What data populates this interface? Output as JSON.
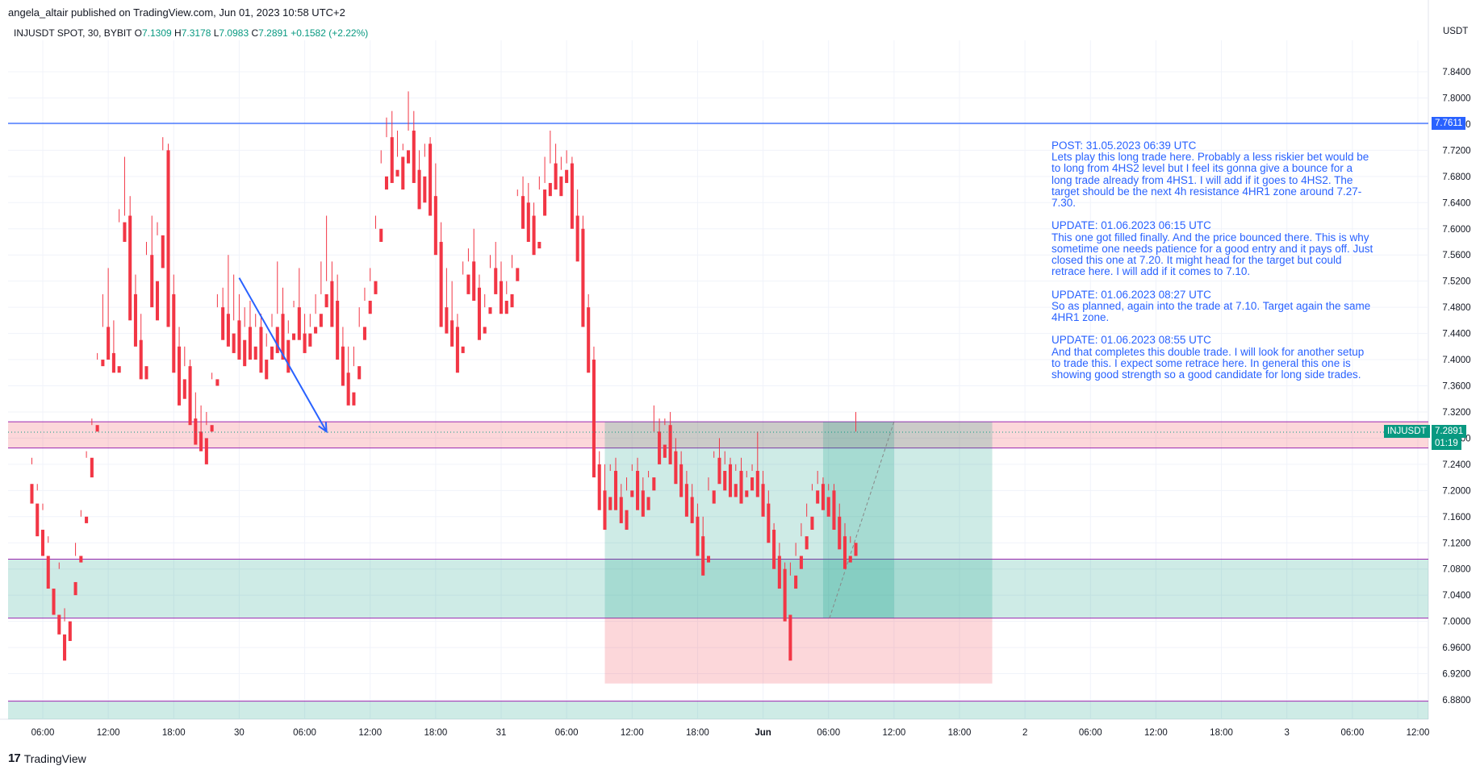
{
  "header": {
    "publisher_text": "angela_altair published on TradingView.com, Jun 01, 2023 10:58 UTC+2"
  },
  "symbol_bar": {
    "symbol": "INJUSDT SPOT, 30, BYBIT",
    "o_label": "O",
    "o_value": "7.1309",
    "h_label": "H",
    "h_value": "7.3178",
    "l_label": "L",
    "l_value": "7.0983",
    "c_label": "C",
    "c_value": "7.2891",
    "change": "+0.1582 (+2.22%)"
  },
  "currency_label": "USDT",
  "price_tags": {
    "resistance_value": "7.7611",
    "ticker_name": "INJUSDT",
    "last_price": "7.2891",
    "countdown": "01:19"
  },
  "colors": {
    "up": "#089981",
    "down": "#f23645",
    "resistance_line": "#2962ff",
    "zone_lines": "#9c27b0",
    "note_text": "#2962ff"
  },
  "notes": [
    "POST: 31.05.2023 06:39 UTC\nLets play this long trade here. Probably a less riskier bet would be to long from 4HS2 level but I feel its gonna give a bounce for a long trade already from 4HS1. I will add if it goes to 4HS2. The target should be the next 4h resistance 4HR1 zone around 7.27-7.30.",
    "UPDATE: 01.06.2023 06:15 UTC\nThis one got filled finally. And the price bounced there. This is why sometime one needs patience for a good entry and it pays off. Just closed this one at 7.20. It might head for the target but could retrace here. I will add if it comes to 7.10.",
    "UPDATE: 01.06.2023 08:27 UTC\nSo as planned, again into the trade at 7.10. Target again the same 4HR1 zone.",
    "UPDATE: 01.06.2023 08:55 UTC\nAnd that completes this double trade. I will look for another setup to trade this. I expect some retrace here. In general this one is showing good strength so a good candidate for long side trades."
  ],
  "footer": {
    "brand": "TradingView",
    "mark": "17"
  },
  "chart_data": {
    "type": "candlestick",
    "symbol": "INJUSDT",
    "timeframe": "30",
    "y_axis_labels": [
      "7.8400",
      "7.8000",
      "7.7600",
      "7.7200",
      "7.6800",
      "7.6400",
      "7.6000",
      "7.5600",
      "7.5200",
      "7.4800",
      "7.4400",
      "7.4000",
      "7.3600",
      "7.3200",
      "7.2800",
      "7.2400",
      "7.2000",
      "7.1600",
      "7.1200",
      "7.0800",
      "7.0400",
      "7.0000",
      "6.9600",
      "6.9200",
      "6.8800"
    ],
    "ylim": [
      6.86,
      7.88
    ],
    "x_axis_labels": [
      "06:00",
      "12:00",
      "18:00",
      "30",
      "06:00",
      "12:00",
      "18:00",
      "31",
      "06:00",
      "12:00",
      "18:00",
      "Jun",
      "06:00",
      "12:00",
      "18:00",
      "2",
      "06:00",
      "12:00",
      "18:00",
      "3",
      "06:00",
      "12:00"
    ],
    "x_axis_bar_index": [
      2,
      14,
      26,
      38,
      50,
      62,
      74,
      86,
      98,
      110,
      122,
      134,
      146,
      158,
      170,
      182,
      194,
      206,
      218,
      230,
      242,
      254
    ],
    "levels": {
      "resistance": 7.7611,
      "upper_zone": [
        7.265,
        7.305
      ],
      "support_zone": [
        7.005,
        7.095
      ],
      "bottom_line": 6.878,
      "last_price": 7.2891
    },
    "long_position": {
      "start_bar": 105,
      "end_bar": 176,
      "entry": 7.005,
      "target": 7.305,
      "stop": 6.905
    },
    "long_position_2": {
      "start_bar": 145,
      "end_bar": 158,
      "entry": 7.005,
      "target": 7.305
    },
    "arrow": {
      "from": [
        38,
        7.525
      ],
      "to": [
        54,
        7.29
      ]
    },
    "candles": [
      [
        7.21,
        7.25,
        7.24,
        7.18
      ],
      [
        7.18,
        7.21,
        7.2,
        7.13
      ],
      [
        7.14,
        7.18,
        7.17,
        7.1
      ],
      [
        7.1,
        7.13,
        7.12,
        7.05
      ],
      [
        7.05,
        7.08,
        7.08,
        7.01
      ],
      [
        7.01,
        7.09,
        7.08,
        6.98
      ],
      [
        6.98,
        7.02,
        7.0,
        6.94
      ],
      [
        7.0,
        7.06,
        7.06,
        6.97
      ],
      [
        7.06,
        7.12,
        7.1,
        7.04
      ],
      [
        7.1,
        7.17,
        7.16,
        7.09
      ],
      [
        7.16,
        7.26,
        7.25,
        7.15
      ],
      [
        7.25,
        7.31,
        7.3,
        7.22
      ],
      [
        7.3,
        7.41,
        7.4,
        7.29
      ],
      [
        7.4,
        7.5,
        7.45,
        7.39
      ],
      [
        7.45,
        7.54,
        7.41,
        7.4
      ],
      [
        7.41,
        7.46,
        7.39,
        7.38
      ],
      [
        7.39,
        7.63,
        7.61,
        7.38
      ],
      [
        7.61,
        7.71,
        7.62,
        7.58
      ],
      [
        7.62,
        7.65,
        7.5,
        7.46
      ],
      [
        7.5,
        7.53,
        7.43,
        7.42
      ],
      [
        7.43,
        7.47,
        7.39,
        7.37
      ],
      [
        7.39,
        7.58,
        7.56,
        7.37
      ],
      [
        7.56,
        7.62,
        7.52,
        7.48
      ],
      [
        7.52,
        7.61,
        7.59,
        7.46
      ],
      [
        7.59,
        7.74,
        7.72,
        7.54
      ],
      [
        7.72,
        7.73,
        7.5,
        7.45
      ],
      [
        7.5,
        7.53,
        7.42,
        7.38
      ],
      [
        7.42,
        7.45,
        7.37,
        7.33
      ],
      [
        7.37,
        7.42,
        7.39,
        7.34
      ],
      [
        7.39,
        7.4,
        7.31,
        7.3
      ],
      [
        7.31,
        7.35,
        7.29,
        7.27
      ],
      [
        7.29,
        7.33,
        7.28,
        7.26
      ],
      [
        7.28,
        7.32,
        7.3,
        7.24
      ],
      [
        7.3,
        7.38,
        7.37,
        7.29
      ],
      [
        7.37,
        7.5,
        7.48,
        7.36
      ],
      [
        7.48,
        7.51,
        7.47,
        7.43
      ],
      [
        7.47,
        7.56,
        7.44,
        7.42
      ],
      [
        7.44,
        7.53,
        7.46,
        7.41
      ],
      [
        7.46,
        7.5,
        7.43,
        7.4
      ],
      [
        7.43,
        7.48,
        7.45,
        7.39
      ],
      [
        7.45,
        7.49,
        7.42,
        7.4
      ],
      [
        7.42,
        7.47,
        7.45,
        7.4
      ],
      [
        7.45,
        7.47,
        7.4,
        7.38
      ],
      [
        7.4,
        7.44,
        7.42,
        7.37
      ],
      [
        7.42,
        7.47,
        7.45,
        7.4
      ],
      [
        7.45,
        7.55,
        7.47,
        7.41
      ],
      [
        7.47,
        7.51,
        7.43,
        7.4
      ],
      [
        7.43,
        7.46,
        7.44,
        7.38
      ],
      [
        7.44,
        7.49,
        7.48,
        7.43
      ],
      [
        7.48,
        7.54,
        7.44,
        7.43
      ],
      [
        7.44,
        7.47,
        7.44,
        7.41
      ],
      [
        7.44,
        7.47,
        7.45,
        7.42
      ],
      [
        7.45,
        7.5,
        7.47,
        7.44
      ],
      [
        7.47,
        7.55,
        7.5,
        7.45
      ],
      [
        7.5,
        7.62,
        7.52,
        7.48
      ],
      [
        7.52,
        7.55,
        7.49,
        7.45
      ],
      [
        7.49,
        7.53,
        7.42,
        7.4
      ],
      [
        7.42,
        7.45,
        7.38,
        7.36
      ],
      [
        7.38,
        7.42,
        7.35,
        7.33
      ],
      [
        7.35,
        7.42,
        7.39,
        7.33
      ],
      [
        7.39,
        7.48,
        7.45,
        7.37
      ],
      [
        7.45,
        7.51,
        7.49,
        7.43
      ],
      [
        7.49,
        7.54,
        7.52,
        7.47
      ],
      [
        7.52,
        7.62,
        7.6,
        7.5
      ],
      [
        7.6,
        7.7,
        7.72,
        7.58
      ],
      [
        7.68,
        7.77,
        7.74,
        7.66
      ],
      [
        7.74,
        7.78,
        7.69,
        7.67
      ],
      [
        7.69,
        7.75,
        7.71,
        7.68
      ],
      [
        7.71,
        7.73,
        7.72,
        7.66
      ],
      [
        7.72,
        7.81,
        7.75,
        7.7
      ],
      [
        7.75,
        7.78,
        7.69,
        7.67
      ],
      [
        7.69,
        7.72,
        7.68,
        7.63
      ],
      [
        7.68,
        7.71,
        7.73,
        7.64
      ],
      [
        7.73,
        7.74,
        7.65,
        7.62
      ],
      [
        7.65,
        7.7,
        7.58,
        7.56
      ],
      [
        7.58,
        7.61,
        7.48,
        7.45
      ],
      [
        7.48,
        7.54,
        7.46,
        7.44
      ],
      [
        7.46,
        7.52,
        7.45,
        7.42
      ],
      [
        7.45,
        7.47,
        7.42,
        7.38
      ],
      [
        7.42,
        7.55,
        7.53,
        7.41
      ],
      [
        7.53,
        7.57,
        7.55,
        7.5
      ],
      [
        7.55,
        7.6,
        7.51,
        7.49
      ],
      [
        7.51,
        7.53,
        7.45,
        7.43
      ],
      [
        7.45,
        7.5,
        7.48,
        7.44
      ],
      [
        7.48,
        7.56,
        7.54,
        7.47
      ],
      [
        7.54,
        7.58,
        7.52,
        7.5
      ],
      [
        7.52,
        7.55,
        7.49,
        7.47
      ],
      [
        7.49,
        7.52,
        7.5,
        7.47
      ],
      [
        7.5,
        7.56,
        7.54,
        7.48
      ],
      [
        7.54,
        7.66,
        7.65,
        7.52
      ],
      [
        7.65,
        7.68,
        7.64,
        7.6
      ],
      [
        7.64,
        7.67,
        7.62,
        7.58
      ],
      [
        7.62,
        7.64,
        7.58,
        7.56
      ],
      [
        7.58,
        7.68,
        7.66,
        7.57
      ],
      [
        7.66,
        7.71,
        7.67,
        7.62
      ],
      [
        7.67,
        7.75,
        7.7,
        7.65
      ],
      [
        7.7,
        7.73,
        7.68,
        7.66
      ],
      [
        7.68,
        7.71,
        7.69,
        7.65
      ],
      [
        7.69,
        7.72,
        7.7,
        7.67
      ],
      [
        7.7,
        7.71,
        7.62,
        7.6
      ],
      [
        7.62,
        7.66,
        7.6,
        7.55
      ],
      [
        7.6,
        7.62,
        7.48,
        7.45
      ],
      [
        7.48,
        7.5,
        7.4,
        7.38
      ],
      [
        7.4,
        7.42,
        7.24,
        7.22
      ],
      [
        7.24,
        7.26,
        7.2,
        7.17
      ],
      [
        7.2,
        7.24,
        7.19,
        7.14
      ],
      [
        7.19,
        7.24,
        7.23,
        7.17
      ],
      [
        7.23,
        7.25,
        7.19,
        7.17
      ],
      [
        7.19,
        7.21,
        7.17,
        7.15
      ],
      [
        7.17,
        7.22,
        7.2,
        7.14
      ],
      [
        7.2,
        7.24,
        7.23,
        7.19
      ],
      [
        7.23,
        7.25,
        7.2,
        7.17
      ],
      [
        7.2,
        7.22,
        7.19,
        7.16
      ],
      [
        7.19,
        7.23,
        7.22,
        7.17
      ],
      [
        7.22,
        7.33,
        7.29,
        7.2
      ],
      [
        7.29,
        7.31,
        7.27,
        7.24
      ],
      [
        7.27,
        7.31,
        7.3,
        7.25
      ],
      [
        7.3,
        7.32,
        7.26,
        7.24
      ],
      [
        7.26,
        7.28,
        7.24,
        7.21
      ],
      [
        7.24,
        7.26,
        7.21,
        7.19
      ],
      [
        7.21,
        7.23,
        7.19,
        7.16
      ],
      [
        7.19,
        7.21,
        7.16,
        7.15
      ],
      [
        7.16,
        7.18,
        7.13,
        7.1
      ],
      [
        7.13,
        7.16,
        7.1,
        7.07
      ],
      [
        7.1,
        7.22,
        7.2,
        7.09
      ],
      [
        7.2,
        7.26,
        7.25,
        7.18
      ],
      [
        7.25,
        7.28,
        7.23,
        7.21
      ],
      [
        7.23,
        7.26,
        7.24,
        7.2
      ],
      [
        7.24,
        7.25,
        7.21,
        7.19
      ],
      [
        7.21,
        7.24,
        7.23,
        7.19
      ],
      [
        7.23,
        7.25,
        7.2,
        7.18
      ],
      [
        7.2,
        7.23,
        7.22,
        7.19
      ],
      [
        7.22,
        7.24,
        7.23,
        7.2
      ],
      [
        7.23,
        7.29,
        7.21,
        7.19
      ],
      [
        7.21,
        7.23,
        7.18,
        7.16
      ],
      [
        7.18,
        7.2,
        7.14,
        7.12
      ],
      [
        7.14,
        7.15,
        7.1,
        7.08
      ],
      [
        7.1,
        7.12,
        7.08,
        7.05
      ],
      [
        7.08,
        7.09,
        7.01,
        7.0
      ],
      [
        7.01,
        7.09,
        7.07,
        6.94
      ],
      [
        7.07,
        7.12,
        7.1,
        7.05
      ],
      [
        7.1,
        7.15,
        7.13,
        7.08
      ],
      [
        7.13,
        7.18,
        7.16,
        7.11
      ],
      [
        7.16,
        7.21,
        7.2,
        7.14
      ],
      [
        7.2,
        7.23,
        7.21,
        7.18
      ],
      [
        7.21,
        7.22,
        7.19,
        7.17
      ],
      [
        7.19,
        7.21,
        7.2,
        7.16
      ],
      [
        7.2,
        7.21,
        7.16,
        7.14
      ],
      [
        7.16,
        7.18,
        7.13,
        7.11
      ],
      [
        7.13,
        7.15,
        7.1,
        7.08
      ],
      [
        7.1,
        7.13,
        7.12,
        7.09
      ],
      [
        7.12,
        7.32,
        7.29,
        7.1
      ]
    ]
  }
}
